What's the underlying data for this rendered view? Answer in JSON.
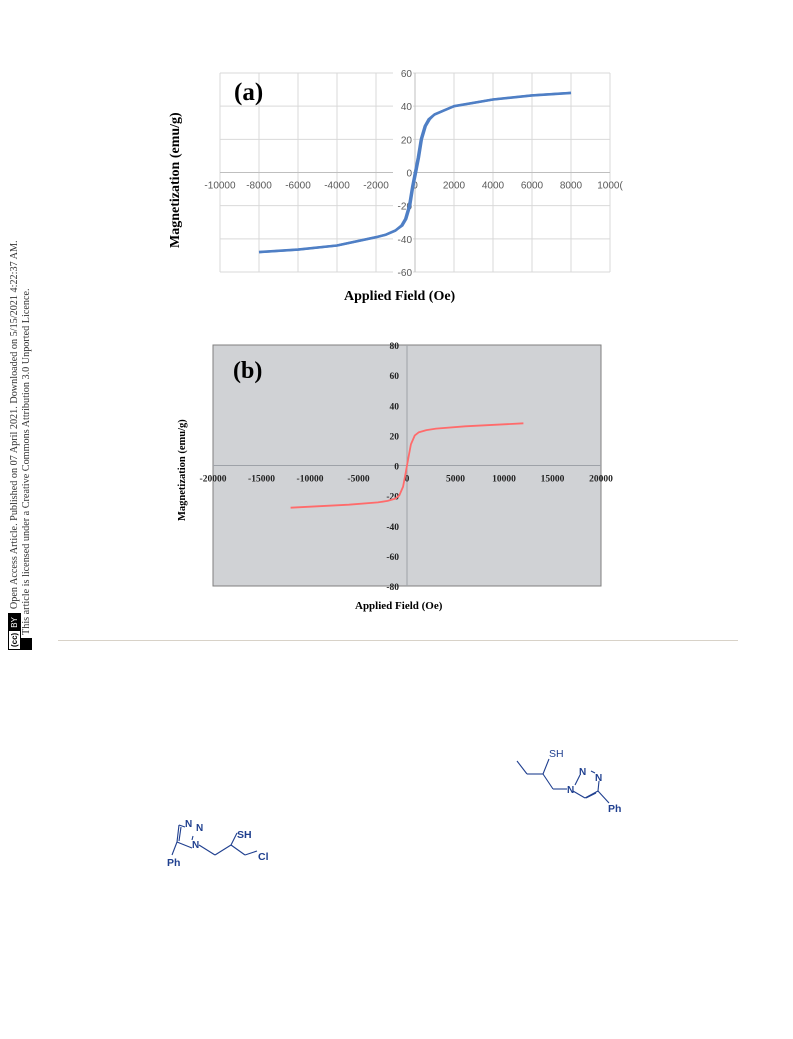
{
  "sidebar": {
    "cc_c": "(cc)",
    "cc_by": "BY",
    "line1": "Open Access Article. Published on 07 April 2021. Downloaded on 5/15/2021 4:22:37 AM.",
    "line2": "This article is licensed under a Creative Commons Attribution 3.0 Unported Licence."
  },
  "chart_data": [
    {
      "type": "line",
      "panel": "(a)",
      "xlabel": "Applied Field (Oe)",
      "ylabel": "Magnetization (emu/g)",
      "xlim": [
        -10000,
        10000
      ],
      "ylim": [
        -60,
        60
      ],
      "x_ticks": [
        "-10000",
        "-8000",
        "-6000",
        "-4000",
        "-2000",
        "0",
        "2000",
        "4000",
        "6000",
        "8000",
        "1000("
      ],
      "y_ticks": [
        "60",
        "40",
        "20",
        "0",
        "-20",
        "-40",
        "-60"
      ],
      "grid": true,
      "colors": {
        "line": "#4f7fc5",
        "grid": "#d9d9d9",
        "background": "#ffffff"
      },
      "series": [
        {
          "x": [
            -8000,
            -6000,
            -4000,
            -2000,
            -1500,
            -1000,
            -700,
            -500,
            -300,
            -150,
            0,
            150,
            300,
            500,
            700,
            1000,
            1500,
            2000,
            4000,
            6000,
            8000
          ],
          "y": [
            -48,
            -46.5,
            -44,
            -39,
            -37.5,
            -35,
            -32,
            -28,
            -20,
            -9,
            0,
            9,
            20,
            28,
            32,
            35,
            37.5,
            40,
            44,
            46.5,
            48
          ]
        }
      ]
    },
    {
      "type": "line",
      "panel": "(b)",
      "xlabel": "Applied Field (Oe)",
      "ylabel": "Magnetization (emu/g)",
      "xlim": [
        -20000,
        20000
      ],
      "ylim": [
        -80,
        80
      ],
      "x_ticks": [
        "-20000",
        "-15000",
        "-10000",
        "-5000",
        "0",
        "5000",
        "10000",
        "15000",
        "20000"
      ],
      "y_ticks": [
        "80",
        "60",
        "40",
        "20",
        "0",
        "-20",
        "-40",
        "-60",
        "-80"
      ],
      "grid": false,
      "colors": {
        "line": "#ff6b6b",
        "background": "#d0d2d5",
        "axis": "#9ea2a8"
      },
      "series": [
        {
          "x": [
            -12000,
            -9000,
            -6000,
            -3000,
            -2000,
            -1200,
            -800,
            -400,
            -200,
            0,
            200,
            400,
            800,
            1200,
            2000,
            3000,
            6000,
            9000,
            12000
          ],
          "y": [
            -28,
            -27,
            -26,
            -24.5,
            -23.5,
            -22,
            -20,
            -14,
            -7,
            0,
            7,
            14,
            20,
            22,
            23.5,
            24.5,
            26,
            27,
            28
          ]
        }
      ]
    }
  ],
  "molecules": {
    "mol1": {
      "sh": "SH",
      "n1": "N",
      "n2": "N",
      "n3": "N",
      "ph": "Ph"
    },
    "mol2": {
      "n1": "N",
      "n2": "N",
      "n3": "N",
      "sh": "SH",
      "cl": "Cl",
      "ph": "Ph"
    }
  }
}
